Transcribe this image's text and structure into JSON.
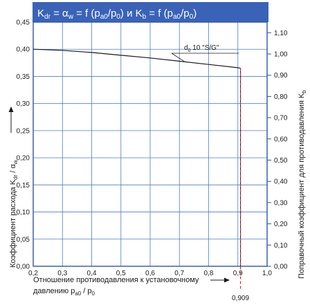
{
  "colors": {
    "header_bg": "#3a63b8",
    "grid": "#4a7bd0",
    "axis": "#2c55a8",
    "curve": "#1a1a1a",
    "marker": "#d9232d"
  },
  "chart_data": {
    "type": "line",
    "title": {
      "k1": "K",
      "k1_sub": "dr",
      "eq1": " = ",
      "alpha": "α",
      "alpha_sub": "w",
      "eq2": " = f (p",
      "p1_sub": "a0",
      "slash1": "/p",
      "p2_sub": "0",
      "close1": ") и K",
      "kb_sub": "b",
      "eq3": " = f (p",
      "p3_sub": "a0",
      "slash2": "/p",
      "p4_sub": "0",
      "close2": ")"
    },
    "xlabel": {
      "line1": "Отношение противодавления к установочному",
      "line2_a": "давлению p",
      "line2_sub": "a0",
      "line2_b": " / p",
      "line2_sub2": "0"
    },
    "ylabel_left": {
      "a": "Коэффициент расхода K",
      "sub1": "dr",
      "b": " / α",
      "sub2": "w"
    },
    "ylabel_right": {
      "a": "Поправочный коэффициент для противодавления K",
      "sub": "b"
    },
    "xlim": [
      0.2,
      1.0
    ],
    "ylim_left": [
      0.0,
      0.45
    ],
    "ylim_right": [
      0.0,
      1.15
    ],
    "x_ticks": [
      0.2,
      0.3,
      0.4,
      0.5,
      0.6,
      0.7,
      0.8,
      0.9,
      1.0
    ],
    "x_tick_labels": [
      "0,2",
      "0,3",
      "0,4",
      "0,5",
      "0,6",
      "0,7",
      "0,8",
      "0,9",
      "1,0"
    ],
    "y_left_ticks": [
      0.0,
      0.05,
      0.1,
      0.15,
      0.2,
      0.25,
      0.3,
      0.35,
      0.4,
      0.45
    ],
    "y_left_tick_labels": [
      "0,00",
      "0,05",
      "0,10",
      "0,15",
      "0,20",
      "0,25",
      "0,30",
      "0,35",
      "0,40",
      "0,45"
    ],
    "y_right_ticks": [
      0.0,
      0.1,
      0.2,
      0.3,
      0.4,
      0.5,
      0.6,
      0.7,
      0.8,
      0.9,
      1.0,
      1.1
    ],
    "y_right_tick_labels": [
      "0,00",
      "0,10",
      "0,20",
      "0,30",
      "0,40",
      "0,50",
      "0,60",
      "0,70",
      "0,80",
      "0,90",
      "1,00",
      "1,10"
    ],
    "grid": true,
    "series": [
      {
        "name": "d0 10 \"S/G\"",
        "label_a": "d",
        "label_sub": "0",
        "label_b": " 10 \"S/G\"",
        "x": [
          0.2,
          0.3,
          0.4,
          0.5,
          0.6,
          0.7,
          0.8,
          0.9,
          0.909
        ],
        "y": [
          0.4,
          0.398,
          0.394,
          0.389,
          0.384,
          0.378,
          0.372,
          0.366,
          0.365
        ]
      }
    ],
    "marker": {
      "x": 0.909,
      "label": "0,909"
    }
  }
}
